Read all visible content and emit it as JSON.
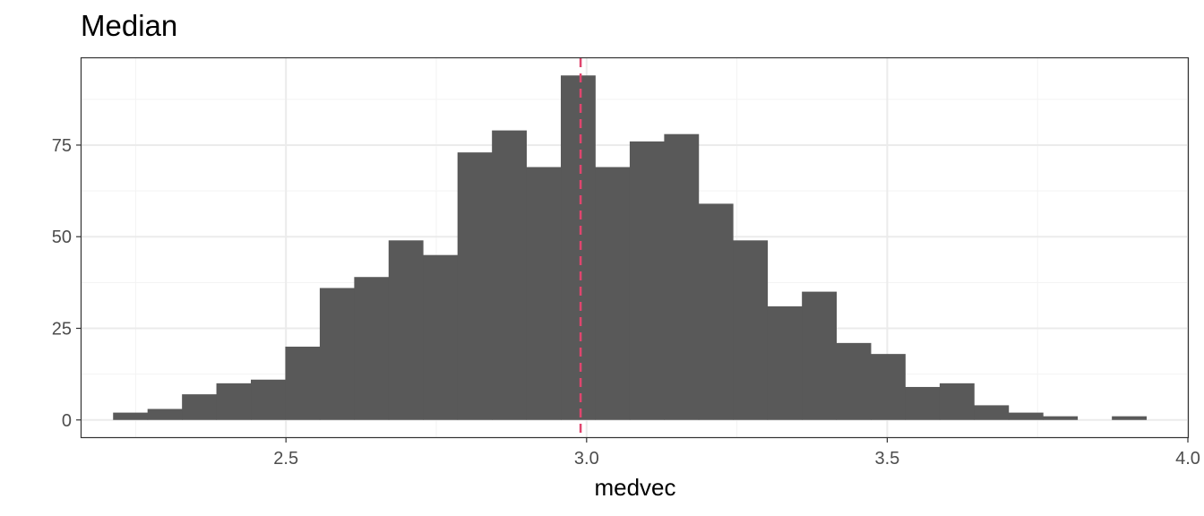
{
  "chart_data": {
    "type": "bar",
    "title": "Median",
    "xlabel": "medvec",
    "ylabel": "",
    "xlim": [
      2.16,
      4.0
    ],
    "ylim": [
      -4.7,
      98.7
    ],
    "x_ticks": [
      2.5,
      3.0,
      3.5,
      4.0
    ],
    "x_tick_labels": [
      "2.5",
      "3.0",
      "3.5",
      "4.0"
    ],
    "y_ticks": [
      0,
      25,
      50,
      75
    ],
    "y_tick_labels": [
      "0",
      "25",
      "50",
      "75"
    ],
    "bin_width": 0.05728,
    "bin_starts": [
      2.2125,
      2.2698,
      2.3271,
      2.3843,
      2.4416,
      2.4989,
      2.5562,
      2.6135,
      2.6707,
      2.728,
      2.7853,
      2.8426,
      2.8999,
      2.9571,
      3.0144,
      3.0717,
      3.129,
      3.1862,
      3.2435,
      3.3008,
      3.3581,
      3.4154,
      3.4726,
      3.5299,
      3.5872,
      3.6445,
      3.7018,
      3.759,
      3.8163,
      3.8736
    ],
    "counts": [
      2,
      3,
      7,
      10,
      11,
      20,
      36,
      39,
      49,
      45,
      73,
      79,
      69,
      94,
      69,
      76,
      78,
      59,
      49,
      31,
      35,
      21,
      18,
      9,
      10,
      4,
      2,
      1,
      0,
      1
    ],
    "median_line": 2.99,
    "grid": true,
    "colors": {
      "bar": "#595959",
      "median_line": "#e0456e",
      "grid_major": "#ebebeb",
      "grid_minor": "#f3f3f3",
      "panel_border": "#333333"
    }
  }
}
